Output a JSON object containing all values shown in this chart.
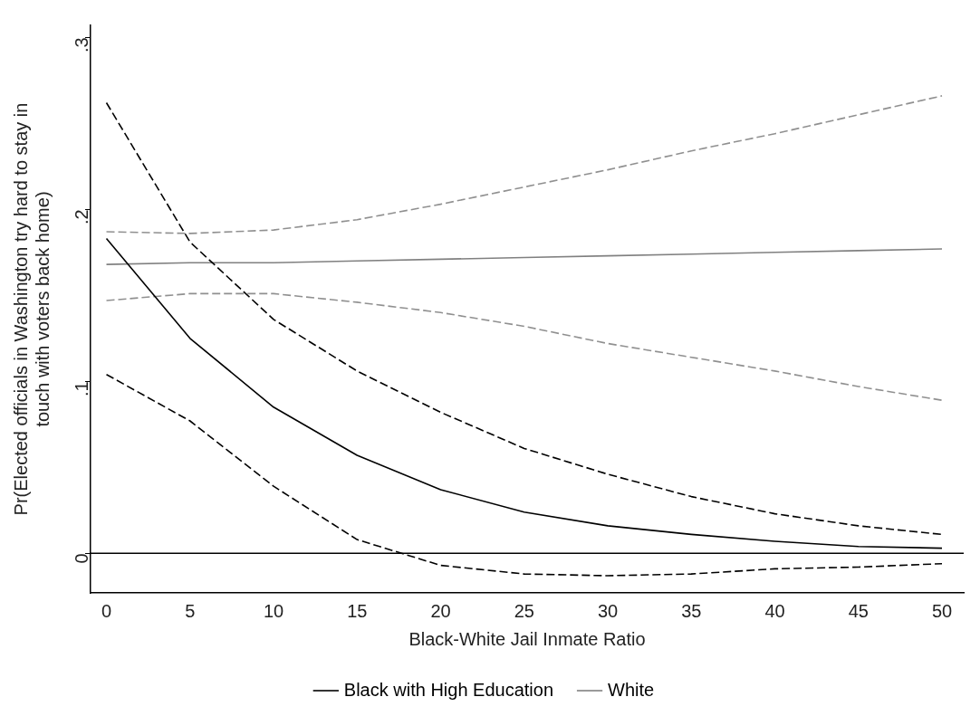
{
  "chart_data": {
    "type": "line",
    "xlabel": "Black-White Jail Inmate Ratio",
    "ylabel": "Pr(Elected officials in Washington try hard to stay in touch with voters back home)",
    "x": [
      0,
      5,
      10,
      15,
      20,
      25,
      30,
      35,
      40,
      45,
      50
    ],
    "series": [
      {
        "name": "Black with High Education",
        "color": "#000000",
        "line_style": "solid",
        "values": [
          0.183,
          0.125,
          0.085,
          0.057,
          0.037,
          0.024,
          0.016,
          0.011,
          0.007,
          0.004,
          0.003
        ]
      },
      {
        "color": "#000000",
        "line_style": "dashed",
        "values": [
          0.262,
          0.181,
          0.136,
          0.106,
          0.082,
          0.061,
          0.046,
          0.033,
          0.023,
          0.016,
          0.011
        ]
      },
      {
        "color": "#000000",
        "line_style": "dashed",
        "values": [
          0.104,
          0.077,
          0.039,
          0.008,
          -0.007,
          -0.012,
          -0.013,
          -0.012,
          -0.009,
          -0.008,
          -0.006
        ]
      },
      {
        "name": "White",
        "color": "#808080",
        "line_style": "solid",
        "values": [
          0.168,
          0.169,
          0.169,
          0.17,
          0.171,
          0.172,
          0.173,
          0.174,
          0.175,
          0.176,
          0.177
        ]
      },
      {
        "color": "#909090",
        "line_style": "dashed",
        "values": [
          0.187,
          0.186,
          0.188,
          0.194,
          0.203,
          0.213,
          0.223,
          0.234,
          0.244,
          0.255,
          0.266
        ]
      },
      {
        "color": "#909090",
        "line_style": "dashed",
        "values": [
          0.147,
          0.151,
          0.151,
          0.146,
          0.14,
          0.132,
          0.122,
          0.114,
          0.106,
          0.097,
          0.089
        ]
      }
    ],
    "xlim": [
      -0.95,
      51.3
    ],
    "xticks": [
      0,
      5,
      10,
      15,
      20,
      25,
      30,
      35,
      40,
      45,
      50
    ],
    "ylim": [
      -0.023,
      0.307
    ],
    "yticks": [
      {
        "value": 0,
        "label": "0"
      },
      {
        "value": 0.1,
        "label": ".1"
      },
      {
        "value": 0.2,
        "label": ".2"
      },
      {
        "value": 0.3,
        "label": ".3"
      }
    ],
    "ref_lines": [
      {
        "axis": "y",
        "value": 0,
        "color": "#000000"
      }
    ],
    "grid": false,
    "legend": "bottom",
    "marker": "none"
  }
}
